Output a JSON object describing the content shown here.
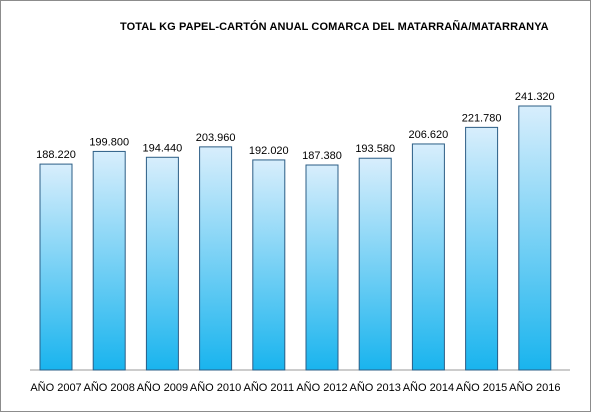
{
  "chart_data": {
    "type": "bar",
    "title": "TOTAL KG PAPEL-CARTÓN ANUAL COMARCA DEL MATARRAÑA/MATARRANYA",
    "categories": [
      "AÑO 2007",
      "AÑO 2008",
      "AÑO 2009",
      "AÑO 2010",
      "AÑO 2011",
      "AÑO 2012",
      "AÑO 2013",
      "AÑO 2014",
      "AÑO 2015",
      "AÑO 2016"
    ],
    "values": [
      188220,
      199800,
      194440,
      203960,
      192020,
      187380,
      193580,
      206620,
      221780,
      241320
    ],
    "value_labels": [
      "188.220",
      "199.800",
      "194.440",
      "203.960",
      "192.020",
      "187.380",
      "193.580",
      "206.620",
      "221.780",
      "241.320"
    ],
    "xlabel": "",
    "ylabel": "",
    "ylim": [
      0,
      241320
    ],
    "grid": false,
    "legend": "none",
    "bar_color_top": "#d8eefc",
    "bar_color_bottom": "#19b4ee"
  }
}
